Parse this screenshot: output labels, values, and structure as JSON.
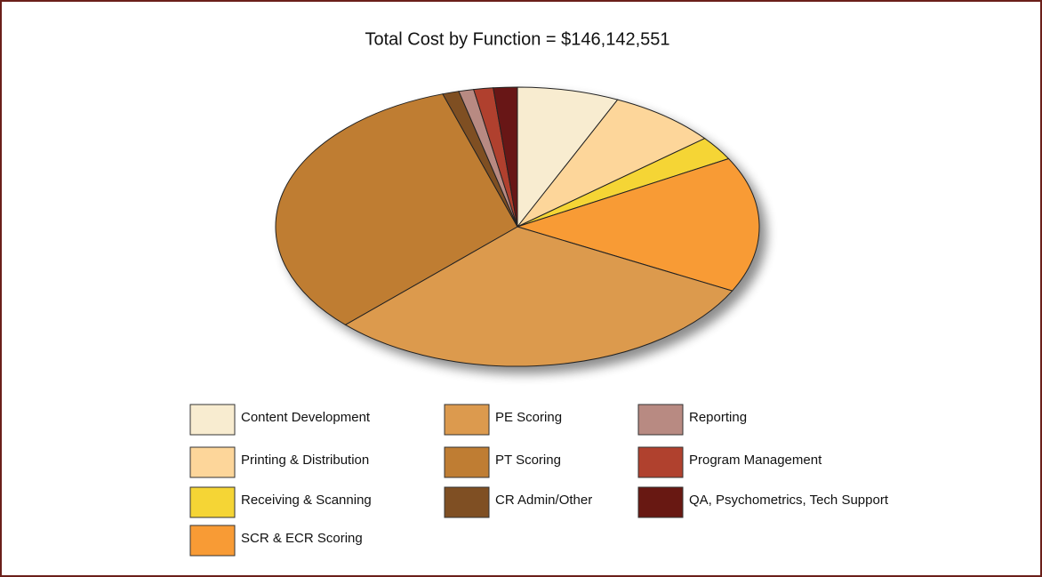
{
  "chart_data": {
    "type": "pie",
    "title": "Total Cost by Function = $146,142,551",
    "categories": [
      "Content Development",
      "Printing & Distribution",
      "Receiving & Scanning",
      "SCR & ECR Scoring",
      "PE Scoring",
      "PT Scoring",
      "CR Admin/Other",
      "Reporting",
      "Program Management",
      "QA, Psychometrics, Tech Support"
    ],
    "values": [
      6.8,
      7.3,
      2.8,
      15.7,
      30.0,
      32.4,
      1.1,
      1.0,
      1.3,
      1.6
    ],
    "colors": [
      "#f8ecd0",
      "#fdd69a",
      "#f5d535",
      "#f89b35",
      "#dc9a4e",
      "#bf7d33",
      "#7f4f23",
      "#b88a82",
      "#b0412e",
      "#681812"
    ],
    "legend": "bottom"
  }
}
